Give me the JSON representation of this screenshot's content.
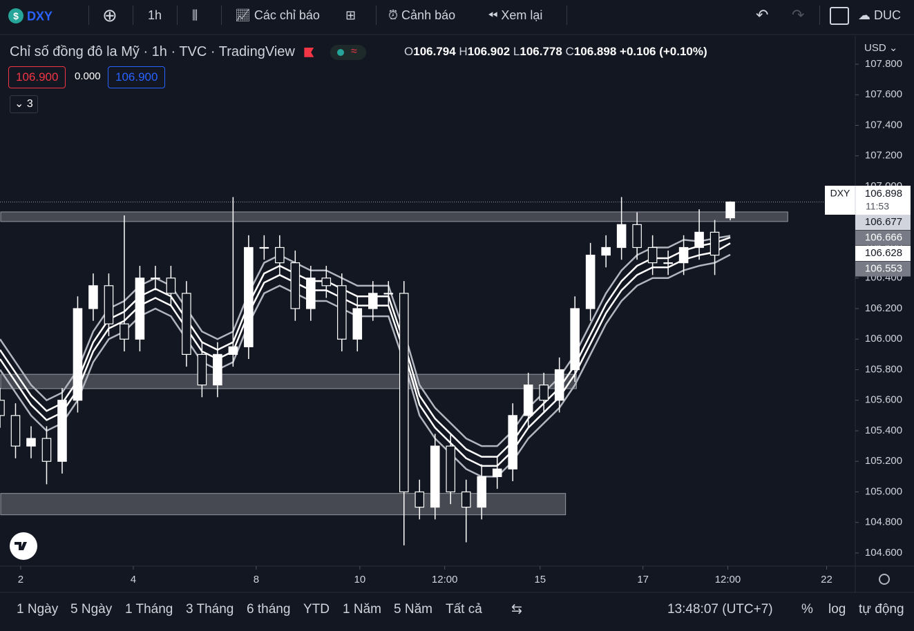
{
  "toolbar": {
    "symbol": "DXY",
    "interval": "1h",
    "indicators": "Các chỉ báo",
    "alerts": "Cảnh báo",
    "replay": "Xem lại",
    "user": "DUC"
  },
  "legend": {
    "title": "Chỉ số đồng đô la Mỹ",
    "interval": "1h",
    "exchange": "TVC",
    "source": "TradingView",
    "o_label": "O",
    "h_label": "H",
    "l_label": "L",
    "c_label": "C",
    "change": "+0.106 (+0.10%)",
    "sell": "106.900",
    "spread": "0.000",
    "buy": "106.900",
    "collapsed_count": "3"
  },
  "chart_data": {
    "type": "candlestick",
    "candle_color": "#ffffff",
    "open": [
      105.6,
      105.5,
      105.3,
      105.35,
      105.2,
      105.6,
      106.2,
      106.35,
      106.1,
      106.0,
      106.4,
      106.4,
      106.3,
      105.9,
      105.7,
      105.9,
      105.95,
      106.6,
      106.6,
      106.5,
      106.2,
      106.4,
      106.35,
      106.0,
      106.2,
      106.3,
      106.3,
      105.0,
      104.9,
      105.3,
      105.0,
      104.9,
      105.1,
      105.15,
      105.5,
      105.7,
      105.6,
      105.8,
      106.2,
      106.55,
      106.6,
      106.75,
      106.6,
      106.5,
      106.5,
      106.6,
      106.7,
      106.794
    ],
    "high": [
      105.68,
      105.58,
      105.43,
      105.43,
      105.68,
      106.28,
      106.43,
      106.43,
      106.81,
      106.48,
      106.48,
      106.48,
      106.38,
      105.98,
      105.98,
      106.93,
      106.68,
      106.68,
      106.68,
      106.58,
      106.48,
      106.48,
      106.43,
      106.28,
      106.38,
      106.38,
      106.38,
      105.08,
      105.38,
      105.38,
      105.08,
      105.18,
      105.23,
      105.58,
      105.78,
      105.78,
      105.88,
      106.28,
      106.63,
      106.68,
      106.93,
      106.83,
      106.68,
      106.58,
      106.68,
      106.85,
      106.78,
      106.902
    ],
    "low": [
      105.42,
      105.22,
      105.22,
      105.05,
      105.12,
      105.52,
      106.12,
      106.02,
      105.92,
      105.92,
      106.32,
      106.22,
      105.82,
      105.62,
      105.62,
      105.82,
      105.87,
      106.52,
      106.42,
      106.12,
      106.12,
      106.27,
      105.92,
      105.92,
      106.12,
      106.22,
      104.65,
      104.82,
      104.82,
      104.92,
      104.67,
      104.82,
      105.02,
      105.07,
      105.42,
      105.52,
      105.52,
      105.72,
      106.12,
      106.47,
      106.52,
      106.52,
      106.42,
      106.42,
      106.42,
      106.52,
      106.42,
      106.778
    ],
    "close": [
      105.5,
      105.3,
      105.35,
      105.2,
      105.6,
      106.2,
      106.35,
      106.1,
      106.0,
      106.4,
      106.4,
      106.3,
      105.9,
      105.7,
      105.9,
      105.95,
      106.6,
      106.6,
      106.5,
      106.2,
      106.4,
      106.35,
      106.0,
      106.2,
      106.3,
      106.3,
      105.0,
      104.9,
      105.3,
      105.0,
      104.9,
      105.1,
      105.15,
      105.5,
      105.7,
      105.6,
      105.8,
      106.2,
      106.55,
      106.6,
      106.75,
      106.6,
      106.5,
      106.5,
      106.6,
      106.7,
      106.55,
      106.898
    ],
    "lines": [
      {
        "color": "#b2b5be",
        "values": [
          106.0,
          105.85,
          105.7,
          105.6,
          105.65,
          105.8,
          106.05,
          106.2,
          106.25,
          106.35,
          106.4,
          106.35,
          106.2,
          106.05,
          106.0,
          106.05,
          106.3,
          106.5,
          106.55,
          106.5,
          106.45,
          106.45,
          106.4,
          106.35,
          106.35,
          106.35,
          106.05,
          105.7,
          105.55,
          105.45,
          105.35,
          105.3,
          105.3,
          105.4,
          105.55,
          105.65,
          105.75,
          105.9,
          106.1,
          106.3,
          106.45,
          106.55,
          106.6,
          106.6,
          106.65,
          106.64,
          106.66,
          106.677
        ]
      },
      {
        "color": "#ffffff",
        "values": [
          105.93,
          105.78,
          105.63,
          105.53,
          105.58,
          105.73,
          105.98,
          106.13,
          106.18,
          106.28,
          106.33,
          106.28,
          106.13,
          105.98,
          105.93,
          105.98,
          106.23,
          106.43,
          106.48,
          106.43,
          106.38,
          106.38,
          106.33,
          106.28,
          106.28,
          106.28,
          105.98,
          105.63,
          105.48,
          105.38,
          105.28,
          105.23,
          105.23,
          105.33,
          105.48,
          105.58,
          105.68,
          105.83,
          106.03,
          106.23,
          106.38,
          106.48,
          106.53,
          106.53,
          106.58,
          106.61,
          106.63,
          106.666
        ]
      },
      {
        "color": "#ffffff",
        "values": [
          105.87,
          105.72,
          105.57,
          105.47,
          105.52,
          105.67,
          105.92,
          106.07,
          106.12,
          106.22,
          106.27,
          106.22,
          106.07,
          105.92,
          105.87,
          105.92,
          106.17,
          106.37,
          106.42,
          106.37,
          106.32,
          106.32,
          106.27,
          106.22,
          106.22,
          106.22,
          105.92,
          105.57,
          105.42,
          105.32,
          105.22,
          105.17,
          105.17,
          105.27,
          105.42,
          105.52,
          105.62,
          105.77,
          105.97,
          106.17,
          106.32,
          106.42,
          106.47,
          106.47,
          106.52,
          106.55,
          106.57,
          106.628
        ]
      },
      {
        "color": "#b2b5be",
        "values": [
          105.8,
          105.65,
          105.5,
          105.4,
          105.45,
          105.6,
          105.85,
          106.0,
          106.05,
          106.15,
          106.2,
          106.15,
          106.0,
          105.85,
          105.8,
          105.85,
          106.1,
          106.3,
          106.35,
          106.3,
          106.25,
          106.25,
          106.2,
          106.15,
          106.15,
          106.15,
          105.85,
          105.5,
          105.35,
          105.25,
          105.15,
          105.1,
          105.1,
          105.2,
          105.35,
          105.45,
          105.55,
          105.7,
          105.9,
          106.1,
          106.25,
          106.35,
          106.4,
          106.4,
          106.45,
          106.48,
          106.5,
          106.553
        ]
      }
    ],
    "zones": [
      {
        "from": 106.77,
        "to": 106.833,
        "x_end": 50.7
      },
      {
        "from": 105.676,
        "to": 105.77,
        "x_end": 37.1
      },
      {
        "from": 104.85,
        "to": 104.99,
        "x_end": 36.4
      }
    ],
    "xlim": [
      0,
      55
    ],
    "xticks": [
      {
        "value": 1.33,
        "label": "2"
      },
      {
        "value": 8.58,
        "label": "4"
      },
      {
        "value": 16.49,
        "label": "8"
      },
      {
        "value": 23.16,
        "label": "10"
      },
      {
        "value": 28.62,
        "label": "12:00"
      },
      {
        "value": 34.76,
        "label": "15"
      },
      {
        "value": 41.38,
        "label": "17"
      },
      {
        "value": 46.84,
        "label": "12:00"
      },
      {
        "value": 53.2,
        "label": "22"
      }
    ],
    "ylim": [
      104.6,
      107.8
    ],
    "yticks": [
      {
        "value": 104.6,
        "label": "104.600"
      },
      {
        "value": 104.8,
        "label": "104.800"
      },
      {
        "value": 105,
        "label": "105.000"
      },
      {
        "value": 105.2,
        "label": "105.200"
      },
      {
        "value": 105.4,
        "label": "105.400"
      },
      {
        "value": 105.6,
        "label": "105.600"
      },
      {
        "value": 105.8,
        "label": "105.800"
      },
      {
        "value": 106,
        "label": "106.000"
      },
      {
        "value": 106.2,
        "label": "106.200"
      },
      {
        "value": 106.4,
        "label": "106.400"
      },
      {
        "value": 106.6,
        "label": "106.600"
      },
      {
        "value": 106.8,
        "label": "106.800"
      },
      {
        "value": 107,
        "label": "107.000"
      },
      {
        "value": 107.2,
        "label": "107.200"
      },
      {
        "value": 107.4,
        "label": "107.400"
      },
      {
        "value": 107.6,
        "label": "107.600"
      },
      {
        "value": 107.8,
        "label": "107.800"
      }
    ],
    "currency": "USD",
    "price_tag": "DXY",
    "countdown": "11:53"
  },
  "bottom": {
    "ranges": [
      "1 Ngày",
      "5 Ngày",
      "1 Tháng",
      "3 Tháng",
      "6 tháng",
      "YTD",
      "1 Năm",
      "5 Năm",
      "Tất cả"
    ],
    "time": "13:48:07 (UTC+7)",
    "percent": "%",
    "log": "log",
    "auto": "tự động"
  }
}
